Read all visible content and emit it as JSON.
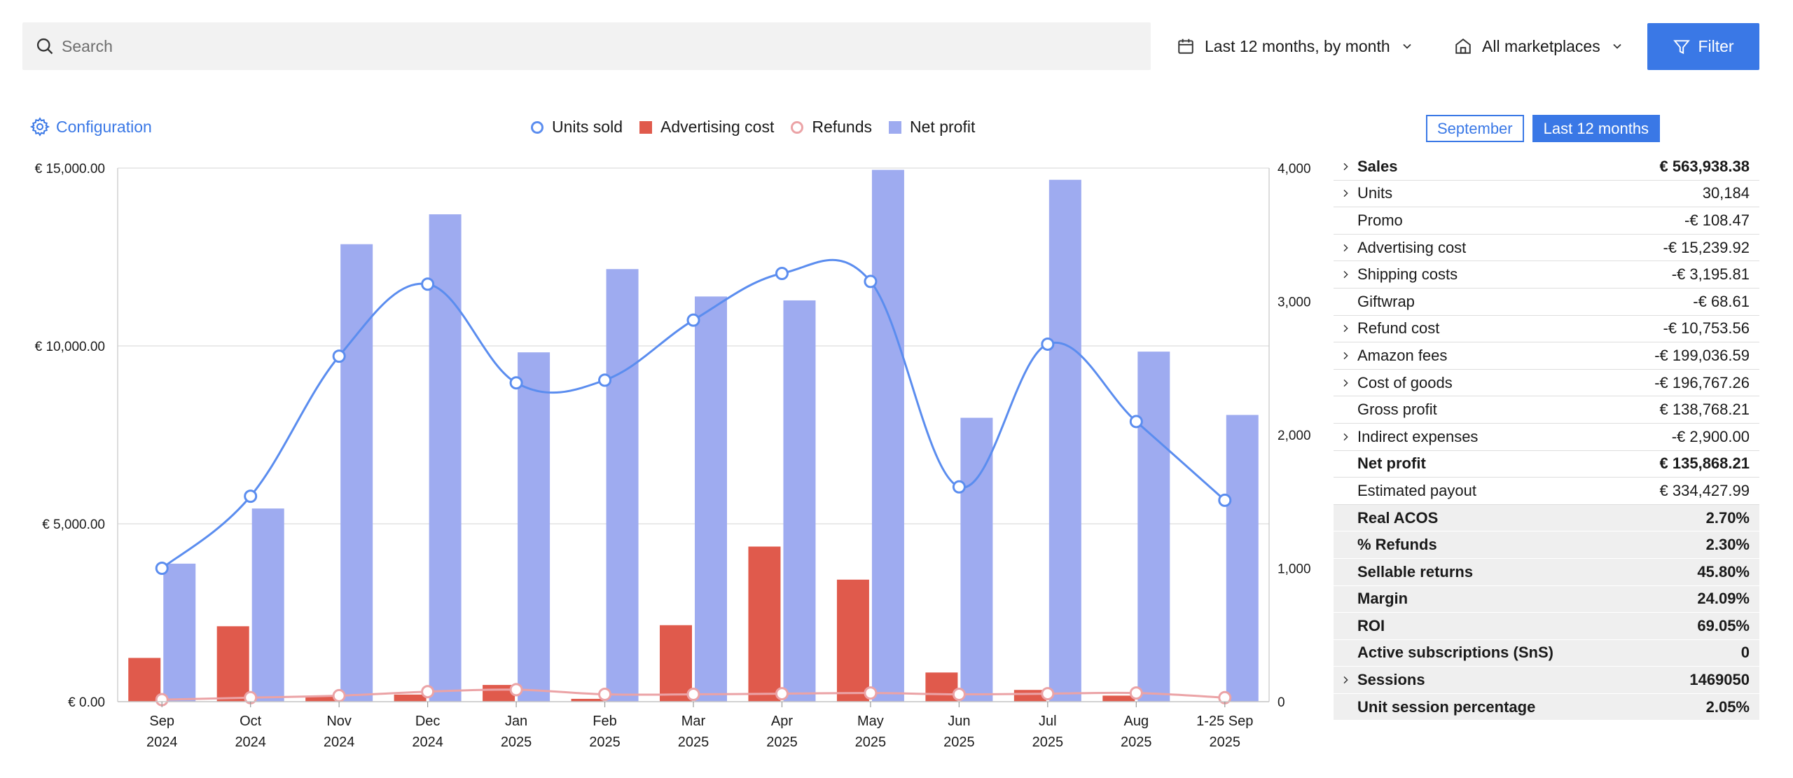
{
  "search": {
    "placeholder": "Search"
  },
  "date_range": {
    "label": "Last 12 months, by month"
  },
  "marketplace": {
    "label": "All marketplaces"
  },
  "filter": {
    "label": "Filter"
  },
  "configuration": {
    "label": "Configuration"
  },
  "legend": [
    {
      "label": "Units sold",
      "color": "#5b8def",
      "shape": "circle"
    },
    {
      "label": "Advertising cost",
      "color": "#e05a4c",
      "shape": "square"
    },
    {
      "label": "Refunds",
      "color": "#eba3a6",
      "shape": "circle"
    },
    {
      "label": "Net profit",
      "color": "#9eabf0",
      "shape": "square"
    }
  ],
  "period_toggle": {
    "option1": "September",
    "option2": "Last 12 months",
    "active": "Last 12 months"
  },
  "chart_data": {
    "type": "bar",
    "categories": [
      [
        "Sep",
        "2024"
      ],
      [
        "Oct",
        "2024"
      ],
      [
        "Nov",
        "2024"
      ],
      [
        "Dec",
        "2024"
      ],
      [
        "Jan",
        "2025"
      ],
      [
        "Feb",
        "2025"
      ],
      [
        "Mar",
        "2025"
      ],
      [
        "Apr",
        "2025"
      ],
      [
        "May",
        "2025"
      ],
      [
        "Jun",
        "2025"
      ],
      [
        "Jul",
        "2025"
      ],
      [
        "Aug",
        "2025"
      ],
      [
        "1-25 Sep",
        "2025"
      ]
    ],
    "y_left": {
      "ticks": [
        "€ 0.00",
        "€ 5,000.00",
        "€ 10,000.00",
        "€ 15,000.00"
      ],
      "range": [
        0,
        15000
      ]
    },
    "y_right": {
      "ticks": [
        "0",
        "1,000",
        "2,000",
        "3,000",
        "4,000"
      ],
      "range": [
        0,
        4000
      ]
    },
    "series": [
      {
        "name": "Advertising cost",
        "kind": "bar",
        "axis": "left",
        "color": "#e05a4c",
        "values": [
          1230,
          2120,
          160,
          200,
          470,
          80,
          2150,
          4360,
          3430,
          820,
          330,
          170,
          0
        ]
      },
      {
        "name": "Net profit",
        "kind": "bar",
        "axis": "left",
        "color": "#9eabf0",
        "values": [
          3880,
          5430,
          12860,
          13700,
          9820,
          12160,
          11390,
          11280,
          14950,
          7980,
          14670,
          9840,
          8060
        ]
      },
      {
        "name": "Units sold",
        "kind": "line",
        "axis": "right",
        "color": "#5b8def",
        "values": [
          1000,
          1540,
          2590,
          3130,
          2390,
          2410,
          2860,
          3210,
          3150,
          1610,
          2680,
          2100,
          1510
        ]
      },
      {
        "name": "Refunds",
        "kind": "line",
        "axis": "right",
        "color": "#eba3a6",
        "values": [
          15,
          30,
          45,
          75,
          90,
          55,
          55,
          60,
          65,
          55,
          60,
          65,
          30
        ]
      }
    ],
    "grid": true,
    "legend_position": "top-center"
  },
  "summary": [
    {
      "label": "Sales",
      "value": "€ 563,938.38",
      "bold": true,
      "shaded": false,
      "expandable": true
    },
    {
      "label": "Units",
      "value": "30,184",
      "bold": false,
      "shaded": false,
      "expandable": true
    },
    {
      "label": "Promo",
      "value": "-€ 108.47",
      "bold": false,
      "shaded": false,
      "expandable": false
    },
    {
      "label": "Advertising cost",
      "value": "-€ 15,239.92",
      "bold": false,
      "shaded": false,
      "expandable": true
    },
    {
      "label": "Shipping costs",
      "value": "-€ 3,195.81",
      "bold": false,
      "shaded": false,
      "expandable": true
    },
    {
      "label": "Giftwrap",
      "value": "-€ 68.61",
      "bold": false,
      "shaded": false,
      "expandable": false
    },
    {
      "label": "Refund cost",
      "value": "-€ 10,753.56",
      "bold": false,
      "shaded": false,
      "expandable": true
    },
    {
      "label": "Amazon fees",
      "value": "-€ 199,036.59",
      "bold": false,
      "shaded": false,
      "expandable": true
    },
    {
      "label": "Cost of goods",
      "value": "-€ 196,767.26",
      "bold": false,
      "shaded": false,
      "expandable": true
    },
    {
      "label": "Gross profit",
      "value": "€ 138,768.21",
      "bold": false,
      "shaded": false,
      "expandable": false
    },
    {
      "label": "Indirect expenses",
      "value": "-€ 2,900.00",
      "bold": false,
      "shaded": false,
      "expandable": true
    },
    {
      "label": "Net profit",
      "value": "€ 135,868.21",
      "bold": true,
      "shaded": false,
      "expandable": false
    },
    {
      "label": "Estimated payout",
      "value": "€ 334,427.99",
      "bold": false,
      "shaded": false,
      "expandable": false
    },
    {
      "label": "Real ACOS",
      "value": "2.70%",
      "bold": true,
      "shaded": true,
      "expandable": false
    },
    {
      "label": "% Refunds",
      "value": "2.30%",
      "bold": true,
      "shaded": true,
      "expandable": false
    },
    {
      "label": "Sellable returns",
      "value": "45.80%",
      "bold": true,
      "shaded": true,
      "expandable": false
    },
    {
      "label": "Margin",
      "value": "24.09%",
      "bold": true,
      "shaded": true,
      "expandable": false
    },
    {
      "label": "ROI",
      "value": "69.05%",
      "bold": true,
      "shaded": true,
      "expandable": false
    },
    {
      "label": "Active subscriptions (SnS)",
      "value": "0",
      "bold": true,
      "shaded": true,
      "expandable": false
    },
    {
      "label": "Sessions",
      "value": "1469050",
      "bold": true,
      "shaded": true,
      "expandable": true
    },
    {
      "label": "Unit session percentage",
      "value": "2.05%",
      "bold": true,
      "shaded": true,
      "expandable": false
    }
  ]
}
